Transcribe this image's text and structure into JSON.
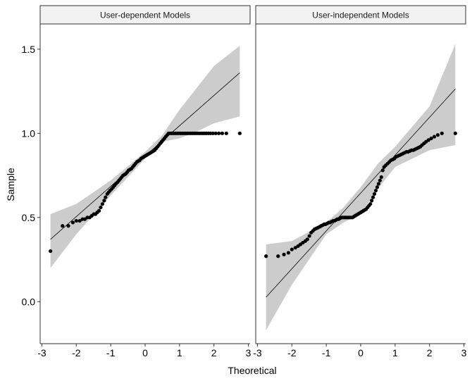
{
  "chart_data": {
    "type": "scatter",
    "subtype": "qq-plot-faceted",
    "xlabel": "Theoretical",
    "ylabel": "Sample",
    "xlim": [
      -3.05,
      3.05
    ],
    "ylim": [
      -0.25,
      1.65
    ],
    "x_ticks": [
      -3,
      -2,
      -1,
      0,
      1,
      2,
      3
    ],
    "y_ticks": [
      0.0,
      0.5,
      1.0,
      1.5
    ],
    "x_tick_labels": [
      "-3",
      "-2",
      "-1",
      "0",
      "1",
      "2",
      "3"
    ],
    "y_tick_labels": [
      "0.0",
      "0.5",
      "1.0",
      "1.5"
    ],
    "grid": false,
    "point_color": "#000000",
    "band_color": "#cccccc",
    "strip_fill": "#f2f2f2",
    "panels": [
      {
        "title": "User-dependent Models",
        "reference_line": {
          "intercept": 0.865,
          "slope": 0.18
        },
        "band": {
          "x": [
            -2.75,
            -2.0,
            -1.0,
            0.0,
            0.5,
            1.0,
            1.5,
            2.0,
            2.75
          ],
          "lower": [
            0.2,
            0.4,
            0.63,
            0.85,
            0.95,
            0.97,
            1.01,
            1.06,
            1.1
          ],
          "upper": [
            0.52,
            0.58,
            0.72,
            0.89,
            0.99,
            1.14,
            1.27,
            1.4,
            1.52
          ]
        },
        "points": [
          [
            -2.75,
            0.3
          ],
          [
            -2.4,
            0.45
          ],
          [
            -2.23,
            0.45
          ],
          [
            -2.1,
            0.47
          ],
          [
            -2.0,
            0.48
          ],
          [
            -1.9,
            0.48
          ],
          [
            -1.82,
            0.49
          ],
          [
            -1.75,
            0.49
          ],
          [
            -1.68,
            0.5
          ],
          [
            -1.61,
            0.5
          ],
          [
            -1.55,
            0.51
          ],
          [
            -1.49,
            0.52
          ],
          [
            -1.44,
            0.52
          ],
          [
            -1.39,
            0.53
          ],
          [
            -1.34,
            0.54
          ],
          [
            -1.29,
            0.56
          ],
          [
            -1.24,
            0.58
          ],
          [
            -1.19,
            0.6
          ],
          [
            -1.15,
            0.62
          ],
          [
            -1.1,
            0.64
          ],
          [
            -1.06,
            0.65
          ],
          [
            -1.02,
            0.66
          ],
          [
            -0.97,
            0.67
          ],
          [
            -0.93,
            0.68
          ],
          [
            -0.89,
            0.69
          ],
          [
            -0.85,
            0.7
          ],
          [
            -0.8,
            0.71
          ],
          [
            -0.76,
            0.72
          ],
          [
            -0.72,
            0.73
          ],
          [
            -0.68,
            0.74
          ],
          [
            -0.64,
            0.75
          ],
          [
            -0.6,
            0.755
          ],
          [
            -0.56,
            0.76
          ],
          [
            -0.52,
            0.77
          ],
          [
            -0.48,
            0.78
          ],
          [
            -0.44,
            0.785
          ],
          [
            -0.4,
            0.79
          ],
          [
            -0.36,
            0.8
          ],
          [
            -0.32,
            0.81
          ],
          [
            -0.28,
            0.82
          ],
          [
            -0.24,
            0.83
          ],
          [
            -0.2,
            0.835
          ],
          [
            -0.16,
            0.84
          ],
          [
            -0.12,
            0.85
          ],
          [
            -0.08,
            0.855
          ],
          [
            -0.04,
            0.86
          ],
          [
            0.0,
            0.865
          ],
          [
            0.04,
            0.87
          ],
          [
            0.08,
            0.875
          ],
          [
            0.12,
            0.88
          ],
          [
            0.16,
            0.885
          ],
          [
            0.2,
            0.89
          ],
          [
            0.24,
            0.895
          ],
          [
            0.28,
            0.9
          ],
          [
            0.32,
            0.91
          ],
          [
            0.36,
            0.92
          ],
          [
            0.4,
            0.93
          ],
          [
            0.44,
            0.94
          ],
          [
            0.48,
            0.95
          ],
          [
            0.52,
            0.96
          ],
          [
            0.56,
            0.97
          ],
          [
            0.6,
            0.98
          ],
          [
            0.64,
            0.99
          ],
          [
            0.68,
            1.0
          ],
          [
            0.73,
            1.0
          ],
          [
            0.78,
            1.0
          ],
          [
            0.83,
            1.0
          ],
          [
            0.88,
            1.0
          ],
          [
            0.93,
            1.0
          ],
          [
            0.98,
            1.0
          ],
          [
            1.03,
            1.0
          ],
          [
            1.08,
            1.0
          ],
          [
            1.13,
            1.0
          ],
          [
            1.18,
            1.0
          ],
          [
            1.23,
            1.0
          ],
          [
            1.28,
            1.0
          ],
          [
            1.33,
            1.0
          ],
          [
            1.38,
            1.0
          ],
          [
            1.43,
            1.0
          ],
          [
            1.48,
            1.0
          ],
          [
            1.53,
            1.0
          ],
          [
            1.58,
            1.0
          ],
          [
            1.63,
            1.0
          ],
          [
            1.68,
            1.0
          ],
          [
            1.73,
            1.0
          ],
          [
            1.78,
            1.0
          ],
          [
            1.84,
            1.0
          ],
          [
            1.9,
            1.0
          ],
          [
            1.97,
            1.0
          ],
          [
            2.05,
            1.0
          ],
          [
            2.14,
            1.0
          ],
          [
            2.24,
            1.0
          ],
          [
            2.36,
            1.0
          ],
          [
            2.75,
            1.0
          ]
        ]
      },
      {
        "title": "User-independent Models",
        "reference_line": {
          "intercept": 0.645,
          "slope": 0.225
        },
        "band": {
          "x": [
            -2.75,
            -2.0,
            -1.0,
            -0.5,
            0.0,
            0.5,
            1.0,
            2.0,
            2.75
          ],
          "lower": [
            -0.17,
            0.1,
            0.4,
            0.47,
            0.52,
            0.67,
            0.8,
            0.9,
            0.93
          ],
          "upper": [
            0.34,
            0.36,
            0.47,
            0.56,
            0.68,
            0.82,
            0.92,
            1.16,
            1.53
          ]
        },
        "points": [
          [
            -2.75,
            0.27
          ],
          [
            -2.4,
            0.27
          ],
          [
            -2.23,
            0.28
          ],
          [
            -2.1,
            0.29
          ],
          [
            -2.0,
            0.31
          ],
          [
            -1.9,
            0.32
          ],
          [
            -1.82,
            0.33
          ],
          [
            -1.75,
            0.34
          ],
          [
            -1.68,
            0.35
          ],
          [
            -1.61,
            0.36
          ],
          [
            -1.55,
            0.37
          ],
          [
            -1.49,
            0.39
          ],
          [
            -1.44,
            0.41
          ],
          [
            -1.39,
            0.42
          ],
          [
            -1.34,
            0.43
          ],
          [
            -1.29,
            0.435
          ],
          [
            -1.24,
            0.44
          ],
          [
            -1.19,
            0.445
          ],
          [
            -1.15,
            0.45
          ],
          [
            -1.1,
            0.455
          ],
          [
            -1.06,
            0.46
          ],
          [
            -1.02,
            0.46
          ],
          [
            -0.97,
            0.465
          ],
          [
            -0.93,
            0.47
          ],
          [
            -0.89,
            0.47
          ],
          [
            -0.85,
            0.475
          ],
          [
            -0.8,
            0.48
          ],
          [
            -0.76,
            0.48
          ],
          [
            -0.72,
            0.485
          ],
          [
            -0.68,
            0.49
          ],
          [
            -0.64,
            0.49
          ],
          [
            -0.6,
            0.495
          ],
          [
            -0.56,
            0.5
          ],
          [
            -0.52,
            0.5
          ],
          [
            -0.48,
            0.5
          ],
          [
            -0.44,
            0.5
          ],
          [
            -0.4,
            0.5
          ],
          [
            -0.36,
            0.5
          ],
          [
            -0.32,
            0.5
          ],
          [
            -0.28,
            0.5
          ],
          [
            -0.24,
            0.5
          ],
          [
            -0.2,
            0.505
          ],
          [
            -0.16,
            0.51
          ],
          [
            -0.12,
            0.515
          ],
          [
            -0.08,
            0.52
          ],
          [
            -0.04,
            0.525
          ],
          [
            0.0,
            0.53
          ],
          [
            0.04,
            0.535
          ],
          [
            0.08,
            0.54
          ],
          [
            0.12,
            0.545
          ],
          [
            0.16,
            0.55
          ],
          [
            0.2,
            0.56
          ],
          [
            0.24,
            0.57
          ],
          [
            0.28,
            0.58
          ],
          [
            0.32,
            0.6
          ],
          [
            0.36,
            0.62
          ],
          [
            0.4,
            0.64
          ],
          [
            0.44,
            0.66
          ],
          [
            0.48,
            0.68
          ],
          [
            0.52,
            0.7
          ],
          [
            0.56,
            0.72
          ],
          [
            0.6,
            0.74
          ],
          [
            0.64,
            0.78
          ],
          [
            0.68,
            0.8
          ],
          [
            0.73,
            0.81
          ],
          [
            0.78,
            0.82
          ],
          [
            0.83,
            0.83
          ],
          [
            0.88,
            0.84
          ],
          [
            0.93,
            0.845
          ],
          [
            0.98,
            0.85
          ],
          [
            1.03,
            0.86
          ],
          [
            1.08,
            0.865
          ],
          [
            1.13,
            0.87
          ],
          [
            1.18,
            0.875
          ],
          [
            1.23,
            0.88
          ],
          [
            1.28,
            0.885
          ],
          [
            1.33,
            0.89
          ],
          [
            1.38,
            0.89
          ],
          [
            1.43,
            0.895
          ],
          [
            1.48,
            0.9
          ],
          [
            1.53,
            0.9
          ],
          [
            1.58,
            0.905
          ],
          [
            1.63,
            0.91
          ],
          [
            1.68,
            0.915
          ],
          [
            1.73,
            0.92
          ],
          [
            1.78,
            0.93
          ],
          [
            1.84,
            0.94
          ],
          [
            1.9,
            0.95
          ],
          [
            1.97,
            0.96
          ],
          [
            2.05,
            0.97
          ],
          [
            2.14,
            0.98
          ],
          [
            2.24,
            0.99
          ],
          [
            2.36,
            1.0
          ],
          [
            2.75,
            1.0
          ]
        ]
      }
    ]
  }
}
